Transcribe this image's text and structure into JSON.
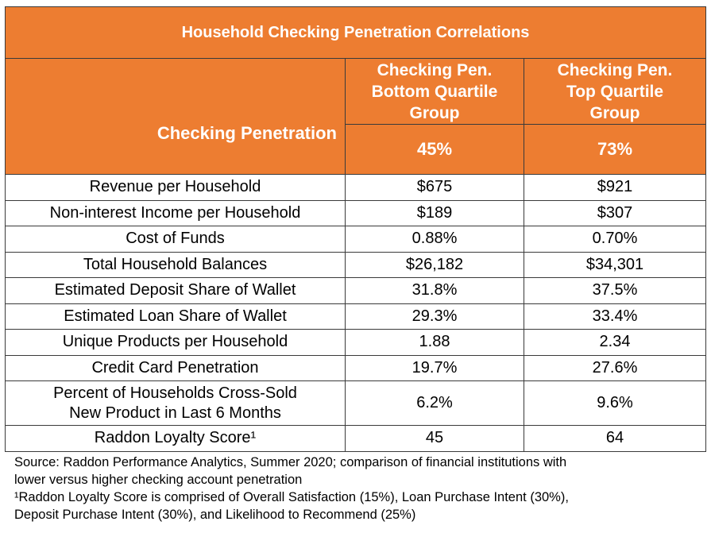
{
  "chart_data": {
    "type": "table",
    "title": "Household Checking Penetration Correlations",
    "columns": [
      "Checking Pen.\nBottom Quartile\nGroup",
      "Checking Pen.\nTop Quartile\nGroup"
    ],
    "column_lines": [
      [
        "Checking Pen.",
        "Bottom Quartile",
        "Group"
      ],
      [
        "Checking Pen.",
        "Top Quartile",
        "Group"
      ]
    ],
    "highlight_row": {
      "label": "Checking Penetration",
      "values": [
        "45%",
        "73%"
      ]
    },
    "rows": [
      {
        "label": "Revenue per Household",
        "values": [
          "$675",
          "$921"
        ]
      },
      {
        "label": "Non-interest Income per Household",
        "values": [
          "$189",
          "$307"
        ]
      },
      {
        "label": "Cost of Funds",
        "values": [
          "0.88%",
          "0.70%"
        ]
      },
      {
        "label": "Total Household Balances",
        "values": [
          "$26,182",
          "$34,301"
        ]
      },
      {
        "label": "Estimated Deposit Share of Wallet",
        "values": [
          "31.8%",
          "37.5%"
        ]
      },
      {
        "label": "Estimated Loan Share of Wallet",
        "values": [
          "29.3%",
          "33.4%"
        ]
      },
      {
        "label": "Unique Products per Household",
        "values": [
          "1.88",
          "2.34"
        ]
      },
      {
        "label": "Credit Card Penetration",
        "values": [
          "19.7%",
          "27.6%"
        ]
      },
      {
        "label_lines": [
          "Percent of Households Cross-Sold",
          "New Product in Last 6 Months"
        ],
        "values": [
          "6.2%",
          "9.6%"
        ]
      },
      {
        "label": "Raddon Loyalty Score¹",
        "values": [
          "45",
          "64"
        ]
      }
    ],
    "header_color": "#ED7D31"
  },
  "footnotes": {
    "source_line1": "Source: Raddon Performance Analytics, Summer 2020; comparison of financial institutions with",
    "source_line2": "lower versus higher checking account penetration",
    "note_line1": "¹Raddon Loyalty Score is comprised of Overall Satisfaction (15%), Loan Purchase Intent (30%),",
    "note_line2": "Deposit Purchase Intent (30%), and Likelihood to Recommend (25%)"
  }
}
